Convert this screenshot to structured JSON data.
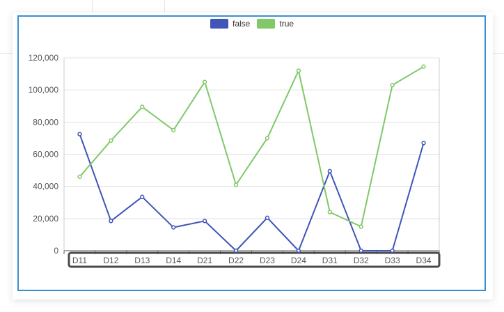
{
  "legend": {
    "items": [
      {
        "label": "false",
        "color": "#3f55b8"
      },
      {
        "label": "true",
        "color": "#80c868"
      }
    ]
  },
  "chart_data": {
    "type": "line",
    "categories": [
      "D11",
      "D12",
      "D13",
      "D14",
      "D21",
      "D22",
      "D23",
      "D24",
      "D31",
      "D32",
      "D33",
      "D34"
    ],
    "series": [
      {
        "name": "false",
        "color": "#3f55b8",
        "values": [
          72500,
          18500,
          33500,
          14500,
          18500,
          0,
          20500,
          0,
          49500,
          0,
          0,
          67000
        ]
      },
      {
        "name": "true",
        "color": "#80c868",
        "values": [
          46000,
          68500,
          89500,
          75000,
          105000,
          41000,
          70000,
          112000,
          24000,
          15000,
          103000,
          114500
        ]
      }
    ],
    "ylim": [
      0,
      120000
    ],
    "yticks": [
      "0",
      "20,000",
      "40,000",
      "60,000",
      "80,000",
      "100,000",
      "120,000"
    ],
    "ytick_values": [
      0,
      20000,
      40000,
      60000,
      80000,
      100000,
      120000
    ],
    "grid": true,
    "legend_position": "top-center",
    "selection_color": "#4a4a4a"
  }
}
